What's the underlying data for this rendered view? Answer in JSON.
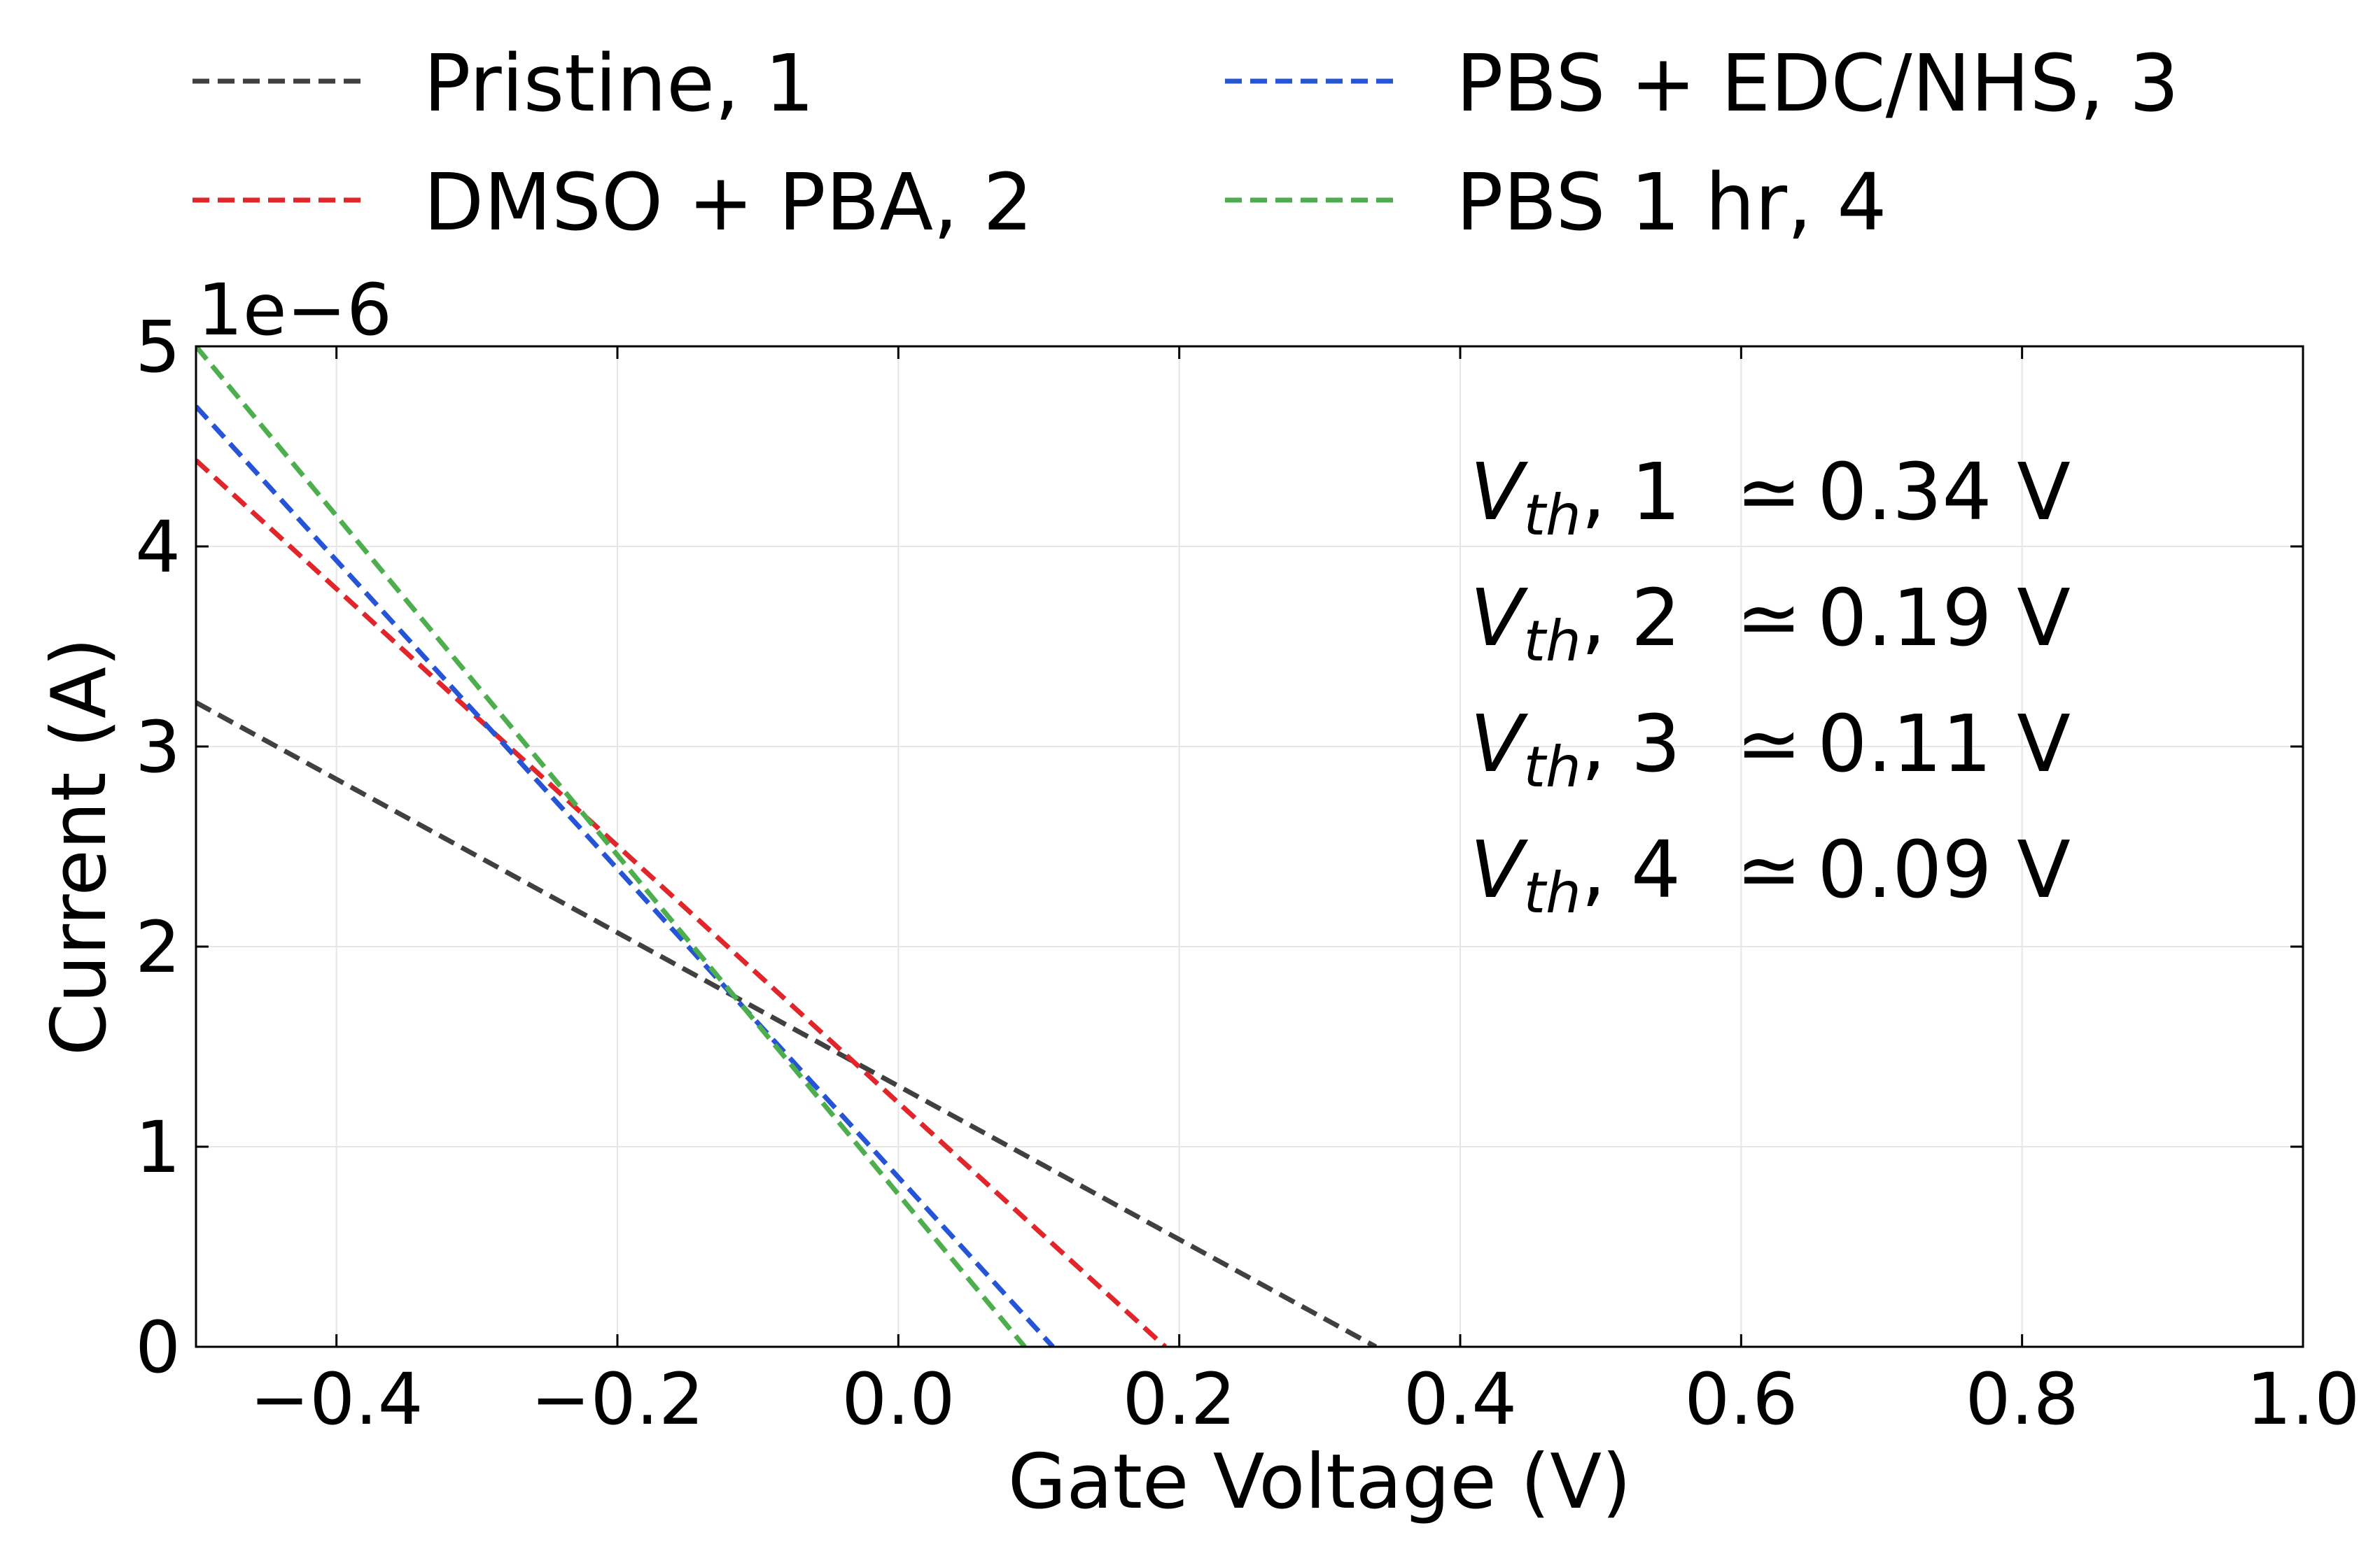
{
  "chart_data": {
    "type": "line",
    "title": "",
    "xlabel": "Gate Voltage (V)",
    "ylabel": "Current (A)",
    "y_offset_label": "1e−6",
    "y_scale": 1e-06,
    "xlim": [
      -0.5,
      1.0
    ],
    "ylim": [
      0,
      5
    ],
    "grid": true,
    "legend_position": "top, above plot, two columns",
    "x_ticks": [
      -0.4,
      -0.2,
      0.0,
      0.2,
      0.4,
      0.6,
      0.8,
      1.0
    ],
    "x_tick_labels": [
      "−0.4",
      "−0.2",
      "0.0",
      "0.2",
      "0.4",
      "0.6",
      "0.8",
      "1.0"
    ],
    "y_ticks": [
      0,
      1,
      2,
      3,
      4,
      5
    ],
    "y_tick_labels": [
      "0",
      "1",
      "2",
      "3",
      "4",
      "5"
    ],
    "series": [
      {
        "name": "Pristine, 1",
        "color": "#404040",
        "dash": "dashed",
        "x": [
          -0.5,
          0.34
        ],
        "y": [
          3.22,
          0.0
        ]
      },
      {
        "name": "DMSO + PBA, 2",
        "color": "#e0262a",
        "dash": "dashed",
        "x": [
          -0.5,
          0.19
        ],
        "y": [
          4.43,
          0.0
        ]
      },
      {
        "name": "PBS + EDC/NHS, 3",
        "color": "#2554d6",
        "dash": "dashed",
        "x": [
          -0.5,
          0.11
        ],
        "y": [
          4.7,
          0.0
        ]
      },
      {
        "name": "PBS 1 hr, 4",
        "color": "#4cae4c",
        "dash": "dashed",
        "x": [
          -0.5,
          0.09
        ],
        "y": [
          5.0,
          0.0
        ]
      }
    ],
    "annotations": [
      {
        "label": "V",
        "subscript": "th",
        "suffix": ", 1",
        "value": "≃ 0.34 V"
      },
      {
        "label": "V",
        "subscript": "th",
        "suffix": ", 2",
        "value": "≃ 0.19 V"
      },
      {
        "label": "V",
        "subscript": "th",
        "suffix": ", 3",
        "value": "≃ 0.11 V"
      },
      {
        "label": "V",
        "subscript": "th",
        "suffix": ", 4",
        "value": "≃ 0.09 V"
      }
    ]
  }
}
